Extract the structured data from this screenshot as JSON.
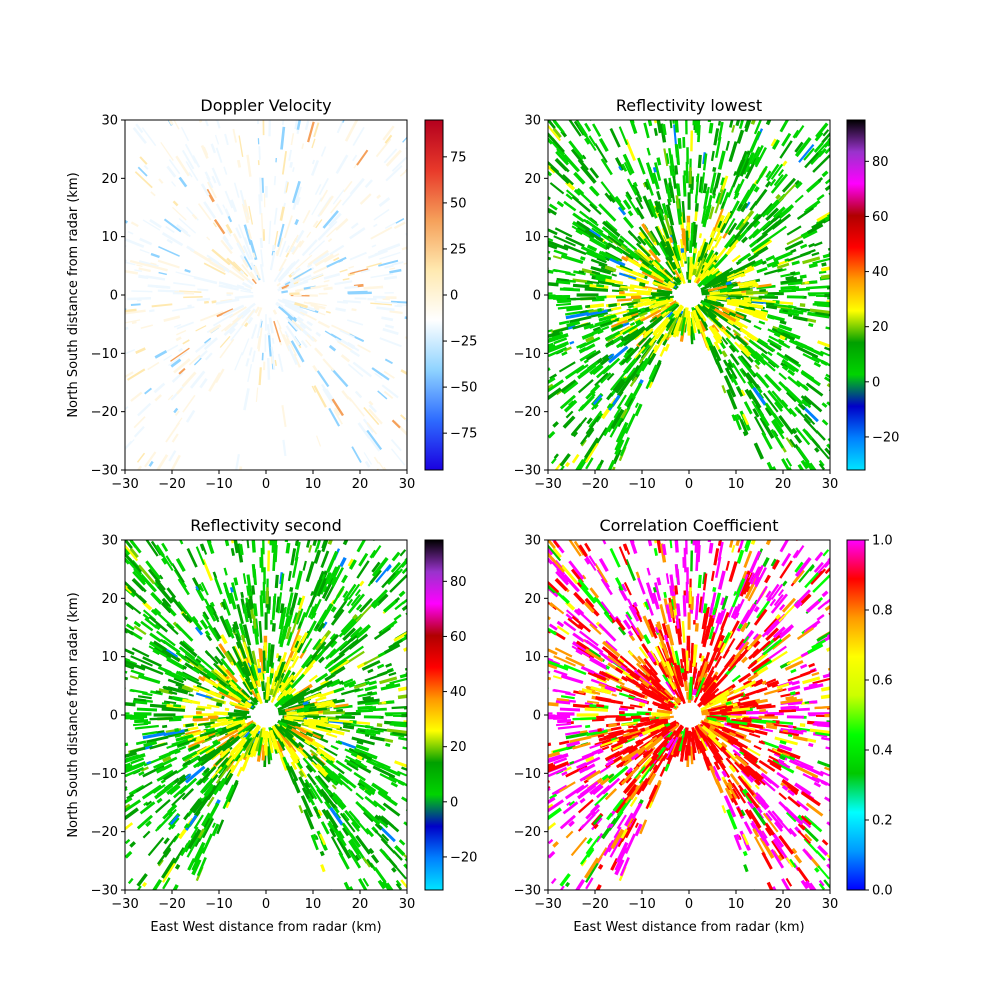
{
  "colors": {
    "doppler_map": [
      "#1a00e0",
      "#2e6cff",
      "#8fd3ff",
      "#ffffff",
      "#ffe9b0",
      "#f5a05a",
      "#e8392a",
      "#b4001e"
    ],
    "reflectivity_map": [
      "#00e5ff",
      "#0080ff",
      "#0000c8",
      "#00d400",
      "#00a000",
      "#ffff00",
      "#ff9900",
      "#ff0000",
      "#b00000",
      "#ff00ff",
      "#9933cc",
      "#000000"
    ],
    "correlation_map": [
      "#0000ff",
      "#0099ff",
      "#00ffff",
      "#00c800",
      "#00ff00",
      "#ccff00",
      "#ffff00",
      "#ff9900",
      "#ff0000",
      "#ff00ff"
    ]
  },
  "chart_data": [
    {
      "type": "heatmap",
      "title": "Doppler Velocity",
      "xlabel": "",
      "ylabel": "North South distance from radar (km)",
      "xlim": [
        -30,
        30
      ],
      "ylim": [
        -30,
        30
      ],
      "x_ticks": [
        "−30",
        "−20",
        "−10",
        "0",
        "10",
        "20",
        "30"
      ],
      "y_ticks": [
        "−30",
        "−20",
        "−10",
        "0",
        "10",
        "20",
        "30"
      ],
      "colorbar": {
        "range": [
          -95,
          95
        ],
        "ticks": [
          -75,
          -50,
          -25,
          0,
          25,
          50,
          75
        ],
        "tick_labels": [
          "−75",
          "−50",
          "−25",
          "0",
          "25",
          "50",
          "75"
        ],
        "colormap": "doppler_map"
      },
      "field": "mostly near-zero velocities (pale blue / pale orange) around radar at origin; small blank hole at center"
    },
    {
      "type": "heatmap",
      "title": "Reflectivity lowest",
      "xlabel": "",
      "ylabel": "",
      "xlim": [
        -30,
        30
      ],
      "ylim": [
        -30,
        30
      ],
      "x_ticks": [
        "−30",
        "−20",
        "−10",
        "0",
        "10",
        "20",
        "30"
      ],
      "y_ticks": [
        "−30",
        "−20",
        "−10",
        "0",
        "10",
        "20",
        "30"
      ],
      "colorbar": {
        "range": [
          -32,
          95
        ],
        "ticks": [
          -20,
          0,
          20,
          40,
          60,
          80
        ],
        "tick_labels": [
          "−20",
          "0",
          "20",
          "40",
          "60",
          "80"
        ],
        "colormap": "reflectivity_map"
      },
      "field": "mostly green (0–10 dBZ) with yellow (20–30 dBZ) near center and north-east; blank wedge to the south"
    },
    {
      "type": "heatmap",
      "title": "Reflectivity second",
      "xlabel": "East West distance from radar (km)",
      "ylabel": "North South distance from radar (km)",
      "xlim": [
        -30,
        30
      ],
      "ylim": [
        -30,
        30
      ],
      "x_ticks": [
        "−30",
        "−20",
        "−10",
        "0",
        "10",
        "20",
        "30"
      ],
      "y_ticks": [
        "−30",
        "−20",
        "−10",
        "0",
        "10",
        "20",
        "30"
      ],
      "colorbar": {
        "range": [
          -32,
          95
        ],
        "ticks": [
          -20,
          0,
          20,
          40,
          60,
          80
        ],
        "tick_labels": [
          "−20",
          "0",
          "20",
          "40",
          "60",
          "80"
        ],
        "colormap": "reflectivity_map"
      },
      "field": "similar to lowest sweep; green field, yellow/orange near center; blank wedge to the south"
    },
    {
      "type": "heatmap",
      "title": "Correlation Coefficient",
      "xlabel": "East West distance from radar (km)",
      "ylabel": "",
      "xlim": [
        -30,
        30
      ],
      "ylim": [
        -30,
        30
      ],
      "x_ticks": [
        "−30",
        "−20",
        "−10",
        "0",
        "10",
        "20",
        "30"
      ],
      "y_ticks": [
        "−30",
        "−20",
        "−10",
        "0",
        "10",
        "20",
        "30"
      ],
      "colorbar": {
        "range": [
          0.0,
          1.0
        ],
        "ticks": [
          0.0,
          0.2,
          0.4,
          0.6,
          0.8,
          1.0
        ],
        "tick_labels": [
          "0.0",
          "0.2",
          "0.4",
          "0.6",
          "0.8",
          "1.0"
        ],
        "colormap": "correlation_map"
      },
      "field": "red/orange (0.8–0.9) near center, magenta (~1.0) at edges, green scattered; blank wedge to the south"
    }
  ]
}
